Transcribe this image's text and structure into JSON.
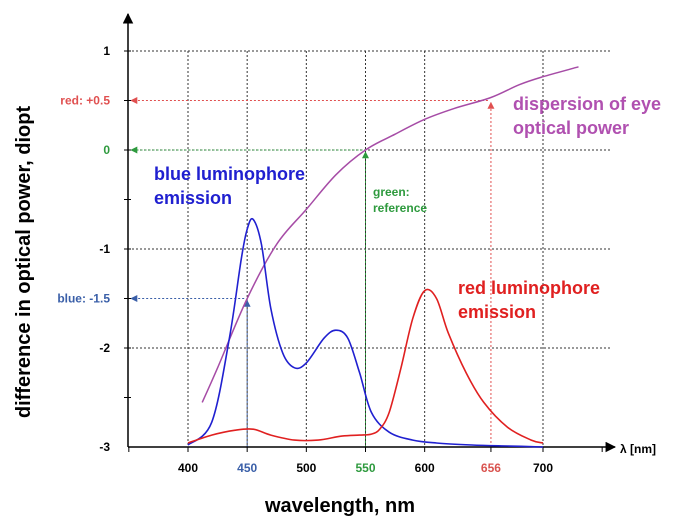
{
  "chart_data": {
    "type": "line",
    "xlabel": "wavelength, nm",
    "ylabel": "difference in optical power, diopt",
    "x_unit_label": "λ [nm]",
    "xlim": [
      330,
      760
    ],
    "ylim": [
      -3,
      1.35
    ],
    "x_ticks": [
      {
        "value": 400,
        "label": "400",
        "color": "#000000"
      },
      {
        "value": 450,
        "label": "450",
        "color": "#3a5fa8"
      },
      {
        "value": 500,
        "label": "500",
        "color": "#000000"
      },
      {
        "value": 550,
        "label": "550",
        "color": "#2e9a3e"
      },
      {
        "value": 600,
        "label": "600",
        "color": "#000000"
      },
      {
        "value": 656,
        "label": "656",
        "color": "#d9534f"
      },
      {
        "value": 700,
        "label": "700",
        "color": "#000000"
      }
    ],
    "y_ticks": [
      {
        "value": 1,
        "label": "1",
        "color": "#000000"
      },
      {
        "value": 0.5,
        "label": "red: +0.5",
        "color": "#e05050"
      },
      {
        "value": 0,
        "label": "0",
        "color": "#2e9a3e"
      },
      {
        "value": -1,
        "label": "-1",
        "color": "#000000"
      },
      {
        "value": -1.5,
        "label": "blue: -1.5",
        "color": "#3a5fa8"
      },
      {
        "value": -2,
        "label": "-2",
        "color": "#000000"
      },
      {
        "value": -3,
        "label": "-3",
        "color": "#000000"
      }
    ],
    "grid_x": [
      400,
      450,
      500,
      550,
      600,
      700
    ],
    "grid_y": [
      1,
      0,
      -1,
      -2
    ],
    "series": [
      {
        "name": "dispersion of eye optical power",
        "color": "#a64ca6",
        "x": [
          412,
          425,
          450,
          475,
          500,
          525,
          550,
          575,
          600,
          625,
          656,
          680,
          700,
          730
        ],
        "y": [
          -2.55,
          -2.2,
          -1.5,
          -0.95,
          -0.6,
          -0.25,
          0.0,
          0.16,
          0.31,
          0.42,
          0.53,
          0.66,
          0.74,
          0.84
        ]
      },
      {
        "name": "blue luminophore emission",
        "color": "#2020d0",
        "x": [
          400,
          420,
          435,
          445,
          450,
          455,
          462,
          470,
          480,
          490,
          500,
          515,
          525,
          535,
          545,
          555,
          570,
          590,
          610,
          640,
          670,
          700
        ],
        "y": [
          -2.98,
          -2.75,
          -1.9,
          -1.1,
          -0.8,
          -0.7,
          -0.95,
          -1.6,
          -2.05,
          -2.2,
          -2.15,
          -1.9,
          -1.82,
          -1.9,
          -2.25,
          -2.65,
          -2.85,
          -2.93,
          -2.96,
          -2.98,
          -2.99,
          -3.0
        ]
      },
      {
        "name": "red luminophore emission",
        "color": "#e02020",
        "x": [
          400,
          420,
          440,
          455,
          470,
          490,
          510,
          530,
          545,
          555,
          562,
          570,
          580,
          590,
          600,
          610,
          620,
          635,
          650,
          670,
          690,
          700
        ],
        "y": [
          -2.96,
          -2.88,
          -2.83,
          -2.82,
          -2.88,
          -2.93,
          -2.93,
          -2.89,
          -2.88,
          -2.87,
          -2.82,
          -2.65,
          -2.2,
          -1.7,
          -1.42,
          -1.5,
          -1.85,
          -2.25,
          -2.55,
          -2.8,
          -2.93,
          -2.96
        ]
      }
    ],
    "annotations": {
      "dispersion_label": [
        "dispersion of eye",
        "optical power"
      ],
      "blue_label": [
        "blue luminophore",
        "emission"
      ],
      "red_label": [
        "red luminophore",
        "emission"
      ],
      "green_label": [
        "green:",
        "reference"
      ]
    },
    "guides": [
      {
        "x": 450,
        "y": -1.5,
        "color": "#3a5fa8"
      },
      {
        "x": 550,
        "y": 0,
        "color": "#2e9a3e"
      },
      {
        "x": 656,
        "y": 0.5,
        "color": "#e05050"
      }
    ],
    "colors": {
      "blue_ann": "#2020d0",
      "red_ann": "#e02020",
      "green_ann": "#2e9a3e",
      "dispersion_ann": "#b050b0"
    }
  }
}
